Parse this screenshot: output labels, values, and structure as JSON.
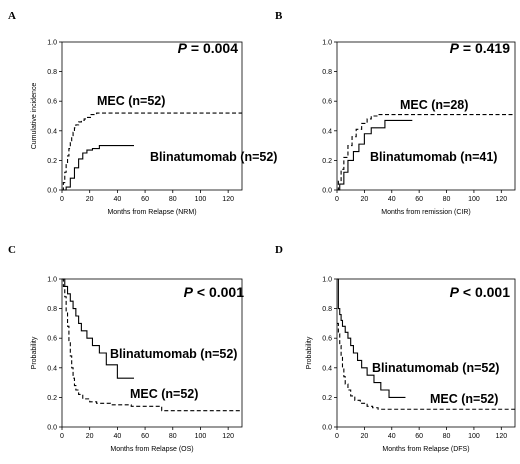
{
  "chart_data": [
    {
      "panel": "A",
      "type": "line",
      "step": true,
      "pvalue": "P = 0.004",
      "xlabel": "Months from Relapse (NRM)",
      "ylabel": "Cumulative incidence",
      "xlim": [
        0,
        130
      ],
      "ylim": [
        0,
        1
      ],
      "xticks": [
        "0",
        "20",
        "40",
        "60",
        "80",
        "100",
        "120"
      ],
      "yticks": [
        "0.0",
        "0.2",
        "0.4",
        "0.6",
        "0.8",
        "1.0"
      ],
      "series": [
        {
          "name": "MEC (n=52)",
          "style": "dashed",
          "x": [
            0,
            1,
            2,
            3,
            4,
            5,
            6,
            7,
            8,
            9,
            10,
            12,
            14,
            16,
            18,
            21,
            25,
            130
          ],
          "y": [
            0,
            0.05,
            0.12,
            0.18,
            0.23,
            0.28,
            0.32,
            0.36,
            0.39,
            0.42,
            0.44,
            0.46,
            0.47,
            0.48,
            0.49,
            0.51,
            0.52,
            0.52
          ]
        },
        {
          "name": "Blinatumomab (n=52)",
          "style": "solid",
          "x": [
            0,
            3,
            6,
            9,
            12,
            15,
            18,
            22,
            27,
            52
          ],
          "y": [
            0,
            0.02,
            0.08,
            0.15,
            0.21,
            0.25,
            0.27,
            0.28,
            0.3,
            0.3
          ]
        }
      ]
    },
    {
      "panel": "B",
      "type": "line",
      "step": true,
      "pvalue": "P = 0.419",
      "xlabel": "Months from remission (CIR)",
      "ylabel": "",
      "xlim": [
        0,
        130
      ],
      "ylim": [
        0,
        1
      ],
      "xticks": [
        "0",
        "20",
        "40",
        "60",
        "80",
        "100",
        "120"
      ],
      "yticks": [
        "0.0",
        "0.2",
        "0.4",
        "0.6",
        "0.8",
        "1.0"
      ],
      "series": [
        {
          "name": "MEC (n=28)",
          "style": "dashed",
          "x": [
            0,
            1,
            3,
            5,
            8,
            11,
            14,
            18,
            22,
            25,
            30,
            130
          ],
          "y": [
            0,
            0.06,
            0.14,
            0.22,
            0.3,
            0.36,
            0.41,
            0.45,
            0.48,
            0.5,
            0.51,
            0.51
          ]
        },
        {
          "name": "Blinatumomab (n=41)",
          "style": "solid",
          "x": [
            0,
            2,
            5,
            8,
            12,
            16,
            20,
            25,
            35,
            55
          ],
          "y": [
            0,
            0.04,
            0.12,
            0.2,
            0.26,
            0.31,
            0.38,
            0.42,
            0.47,
            0.47
          ]
        }
      ]
    },
    {
      "panel": "C",
      "type": "line",
      "step": true,
      "pvalue": "P < 0.001",
      "xlabel": "Months from Relapse (OS)",
      "ylabel": "Probability",
      "xlim": [
        0,
        130
      ],
      "ylim": [
        0,
        1
      ],
      "xticks": [
        "0",
        "20",
        "40",
        "60",
        "80",
        "100",
        "120"
      ],
      "yticks": [
        "0.0",
        "0.2",
        "0.4",
        "0.6",
        "0.8",
        "1.0"
      ],
      "series": [
        {
          "name": "Blinatumomab (n=52)",
          "style": "solid",
          "x": [
            0,
            2,
            4,
            6,
            8,
            10,
            12,
            14,
            18,
            22,
            27,
            32,
            40,
            52
          ],
          "y": [
            1.0,
            0.95,
            0.9,
            0.85,
            0.8,
            0.75,
            0.7,
            0.65,
            0.6,
            0.55,
            0.5,
            0.42,
            0.33,
            0.33
          ]
        },
        {
          "name": "MEC (n=52)",
          "style": "dashed",
          "x": [
            0,
            1,
            2,
            3,
            4,
            5,
            6,
            7,
            8,
            9,
            10,
            12,
            15,
            20,
            25,
            35,
            50,
            72,
            130
          ],
          "y": [
            1.0,
            0.95,
            0.88,
            0.78,
            0.68,
            0.58,
            0.48,
            0.4,
            0.33,
            0.28,
            0.25,
            0.22,
            0.19,
            0.17,
            0.16,
            0.15,
            0.14,
            0.11,
            0.11
          ]
        }
      ]
    },
    {
      "panel": "D",
      "type": "line",
      "step": true,
      "pvalue": "P < 0.001",
      "xlabel": "Months from Relapse (DFS)",
      "ylabel": "Probability",
      "xlim": [
        0,
        130
      ],
      "ylim": [
        0,
        1
      ],
      "xticks": [
        "0",
        "20",
        "40",
        "60",
        "80",
        "100",
        "120"
      ],
      "yticks": [
        "0.0",
        "0.2",
        "0.4",
        "0.6",
        "0.8",
        "1.0"
      ],
      "series": [
        {
          "name": "Blinatumomab (n=52)",
          "style": "solid",
          "x": [
            0,
            1,
            2,
            3,
            4,
            6,
            8,
            10,
            12,
            15,
            18,
            22,
            27,
            32,
            38,
            50
          ],
          "y": [
            1.0,
            0.8,
            0.76,
            0.72,
            0.68,
            0.64,
            0.6,
            0.55,
            0.5,
            0.45,
            0.4,
            0.35,
            0.3,
            0.25,
            0.2,
            0.2
          ]
        },
        {
          "name": "MEC (n=52)",
          "style": "dashed",
          "x": [
            0,
            1,
            2,
            3,
            4,
            5,
            6,
            8,
            10,
            13,
            17,
            22,
            26,
            30,
            130
          ],
          "y": [
            0.7,
            0.63,
            0.55,
            0.47,
            0.4,
            0.34,
            0.29,
            0.25,
            0.21,
            0.18,
            0.16,
            0.14,
            0.13,
            0.12,
            0.12
          ]
        }
      ]
    }
  ]
}
